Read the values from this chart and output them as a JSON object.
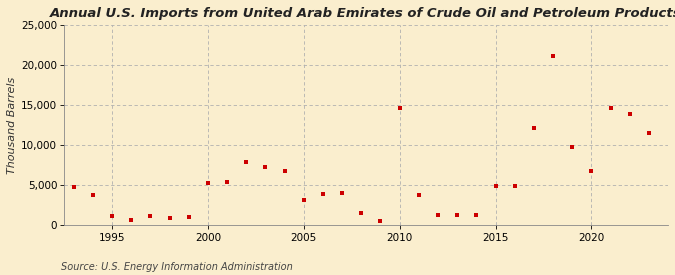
{
  "title": "Annual U.S. Imports from United Arab Emirates of Crude Oil and Petroleum Products",
  "ylabel": "Thousand Barrels",
  "source": "Source: U.S. Energy Information Administration",
  "background_color": "#faeece",
  "marker_color": "#cc0000",
  "years": [
    1993,
    1994,
    1995,
    1996,
    1997,
    1998,
    1999,
    2000,
    2001,
    2002,
    2003,
    2004,
    2005,
    2006,
    2007,
    2008,
    2009,
    2010,
    2011,
    2012,
    2013,
    2014,
    2015,
    2016,
    2017,
    2018,
    2019,
    2020,
    2021,
    2022,
    2023
  ],
  "values": [
    4700,
    3700,
    1100,
    600,
    1100,
    900,
    1000,
    5300,
    5400,
    7900,
    7300,
    6700,
    3100,
    3900,
    4000,
    1500,
    500,
    14700,
    3800,
    1200,
    1200,
    1200,
    4900,
    4900,
    12100,
    21200,
    9700,
    6800,
    14700,
    13900,
    11500
  ],
  "ylim": [
    0,
    25000
  ],
  "yticks": [
    0,
    5000,
    10000,
    15000,
    20000,
    25000
  ],
  "xlim": [
    1992.5,
    2024
  ],
  "xticks": [
    1995,
    2000,
    2005,
    2010,
    2015,
    2020
  ],
  "grid_color": "#b0b0b0",
  "title_fontsize": 9.5,
  "axis_fontsize": 8,
  "tick_fontsize": 7.5,
  "source_fontsize": 7
}
